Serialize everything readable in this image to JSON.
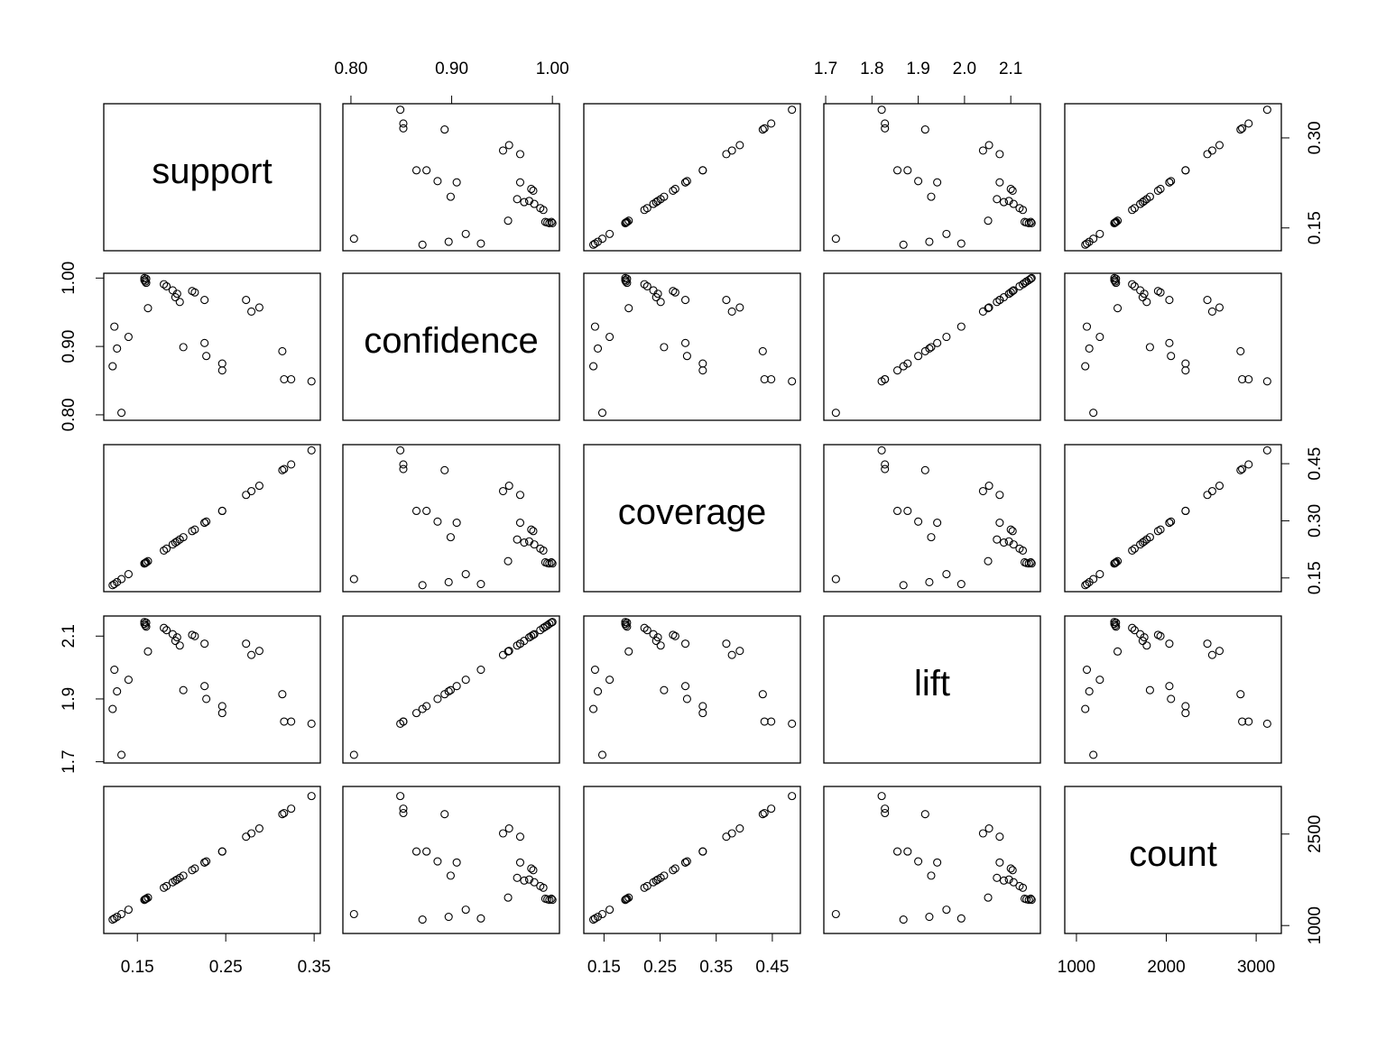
{
  "chart_data": {
    "type": "scatter",
    "variables": [
      {
        "name": "support",
        "lim": [
          0.112,
          0.357
        ],
        "xticks": [
          0.15,
          0.25,
          0.35
        ],
        "yticks": [
          0.15,
          {
            "value": 0.3,
            "label": "0.30"
          }
        ],
        "values": [
          0.124,
          0.122,
          0.127,
          0.132,
          0.14,
          0.158,
          0.158,
          0.159,
          0.16,
          0.16,
          0.162,
          0.18,
          0.183,
          0.19,
          0.193,
          0.195,
          0.198,
          0.202,
          0.212,
          0.215,
          0.226,
          0.226,
          0.228,
          0.246,
          0.246,
          0.273,
          0.279,
          0.288,
          0.314,
          0.316,
          0.324,
          0.347
        ]
      },
      {
        "name": "confidence",
        "lim": [
          0.792,
          1.007
        ],
        "xticks": [
          {
            "value": 0.8,
            "label": "0.80"
          },
          {
            "value": 0.9,
            "label": "0.90"
          },
          {
            "value": 1,
            "label": "1.00"
          }
        ],
        "yticks": [
          {
            "value": 0.8,
            "label": "0.80"
          },
          {
            "value": 0.9,
            "label": "0.90"
          },
          {
            "value": 1,
            "label": "1.00"
          }
        ],
        "values": [
          0.929,
          0.871,
          0.897,
          0.803,
          0.914,
          1.0,
          0.997,
          0.995,
          0.999,
          0.993,
          0.956,
          0.991,
          0.988,
          0.982,
          0.972,
          0.977,
          0.965,
          0.899,
          0.981,
          0.979,
          0.968,
          0.905,
          0.886,
          0.875,
          0.865,
          0.968,
          0.951,
          0.957,
          0.893,
          0.852,
          0.852,
          0.849
        ]
      },
      {
        "name": "coverage",
        "lim": [
          0.114,
          0.5
        ],
        "xticks": [
          0.15,
          0.25,
          0.35,
          0.45
        ],
        "yticks": [
          0.15,
          {
            "value": 0.3,
            "label": "0.30"
          },
          0.45
        ],
        "values": [
          0.134,
          0.131,
          0.139,
          0.147,
          0.16,
          0.188,
          0.188,
          0.189,
          0.191,
          0.191,
          0.194,
          0.222,
          0.227,
          0.238,
          0.243,
          0.246,
          0.251,
          0.257,
          0.273,
          0.277,
          0.295,
          0.295,
          0.298,
          0.326,
          0.326,
          0.368,
          0.378,
          0.392,
          0.433,
          0.436,
          0.448,
          0.485
        ]
      },
      {
        "name": "lift",
        "lim": [
          1.696,
          2.164
        ],
        "xticks": [
          1.7,
          1.8,
          1.9,
          {
            "value": 2,
            "label": "2.0"
          },
          2.1
        ],
        "yticks": [
          1.7,
          1.9,
          2.1
        ],
        "values": [
          1.993,
          1.868,
          1.924,
          1.722,
          1.961,
          2.145,
          2.139,
          2.134,
          2.143,
          2.13,
          2.051,
          2.126,
          2.119,
          2.106,
          2.085,
          2.096,
          2.07,
          1.928,
          2.104,
          2.1,
          2.076,
          1.941,
          1.9,
          1.877,
          1.855,
          2.076,
          2.04,
          2.053,
          1.915,
          1.828,
          1.828,
          1.821
        ]
      },
      {
        "name": "count",
        "lim": [
          870,
          3280
        ],
        "xticks": [
          1000,
          2000,
          3000
        ],
        "yticks": [
          1000,
          2500
        ],
        "values": [
          1116,
          1098,
          1143,
          1188,
          1260,
          1422,
          1422,
          1431,
          1440,
          1440,
          1458,
          1620,
          1647,
          1710,
          1737,
          1755,
          1782,
          1818,
          1908,
          1935,
          2034,
          2034,
          2052,
          2214,
          2214,
          2457,
          2511,
          2592,
          2826,
          2844,
          2916,
          3123
        ]
      }
    ]
  }
}
